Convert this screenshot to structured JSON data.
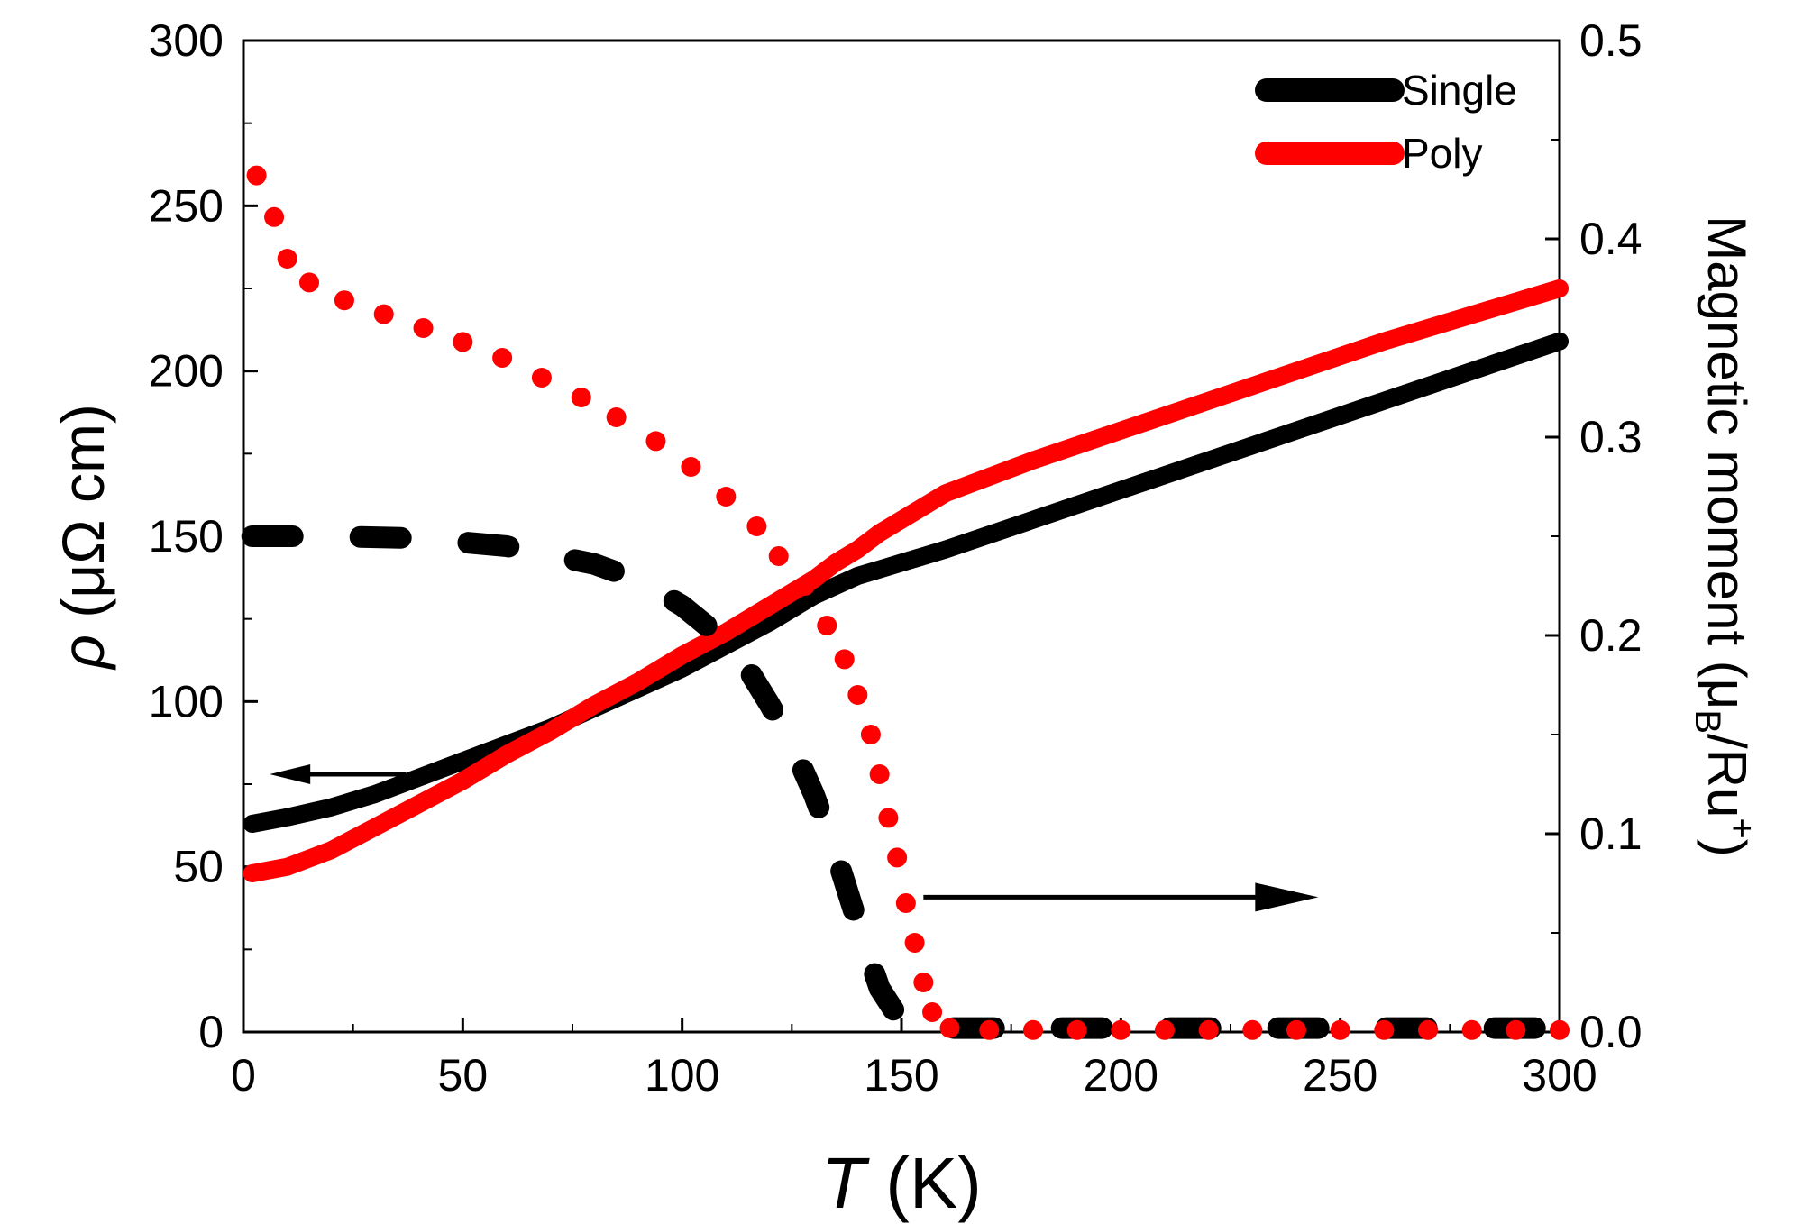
{
  "chart_data": {
    "type": "line",
    "x_axis": {
      "label_symbol": "T",
      "label_unit": " (K)",
      "range": [
        0,
        300
      ],
      "ticks": [
        "0",
        "50",
        "100",
        "150",
        "200",
        "250",
        "300"
      ]
    },
    "y_left_axis": {
      "label_symbol": "ρ",
      "label_unit": " (μΩ cm)",
      "range": [
        0,
        300
      ],
      "ticks": [
        "0",
        "50",
        "100",
        "150",
        "200",
        "250",
        "300"
      ]
    },
    "y_right_axis": {
      "label_main": "Magnetic moment (μ",
      "label_sub": "B",
      "label_mid": "/Ru",
      "label_sup": "+",
      "label_end": ")",
      "range": [
        0,
        0.5
      ],
      "ticks": [
        "0.0",
        "0.1",
        "0.2",
        "0.3",
        "0.4",
        "0.5"
      ]
    },
    "legend": {
      "placement": "top-right",
      "entries": [
        {
          "label": "Single",
          "color": "#000000"
        },
        {
          "label": "Poly",
          "color": "#ff0000"
        }
      ]
    },
    "series": [
      {
        "name": "Single",
        "quantity": "resistivity",
        "axis": "left",
        "style": "solid",
        "color": "#000000",
        "x": [
          2,
          10,
          20,
          30,
          40,
          50,
          60,
          70,
          80,
          90,
          100,
          110,
          120,
          125,
          130,
          135,
          140,
          145,
          150,
          160,
          180,
          200,
          220,
          240,
          260,
          280,
          300
        ],
        "y": [
          63,
          65,
          68,
          72,
          77,
          82,
          87,
          92,
          98,
          104,
          110,
          117,
          124,
          128,
          132,
          135,
          138,
          140,
          142,
          146,
          155,
          164,
          173,
          182,
          191,
          200,
          209
        ]
      },
      {
        "name": "Poly",
        "quantity": "resistivity",
        "axis": "left",
        "style": "solid",
        "color": "#ff0000",
        "x": [
          2,
          10,
          20,
          30,
          40,
          50,
          60,
          70,
          80,
          90,
          100,
          110,
          120,
          125,
          130,
          135,
          140,
          145,
          150,
          160,
          180,
          200,
          220,
          240,
          260,
          280,
          300
        ],
        "y": [
          48,
          50,
          55,
          62,
          69,
          76,
          84,
          91,
          99,
          106,
          114,
          121,
          129,
          133,
          137,
          142,
          146,
          151,
          155,
          163,
          173,
          182,
          191,
          200,
          209,
          217,
          225
        ]
      },
      {
        "name": "Single",
        "quantity": "magnetic moment",
        "axis": "right",
        "style": "dashed",
        "color": "#000000",
        "x": [
          2,
          20,
          40,
          60,
          80,
          90,
          100,
          110,
          115,
          120,
          125,
          130,
          135,
          140,
          145,
          150,
          155,
          160,
          170,
          200,
          250,
          300
        ],
        "y": [
          0.25,
          0.25,
          0.249,
          0.245,
          0.236,
          0.228,
          0.215,
          0.197,
          0.183,
          0.165,
          0.145,
          0.12,
          0.09,
          0.055,
          0.022,
          0.005,
          0.002,
          0.002,
          0.002,
          0.002,
          0.002,
          0.002
        ]
      },
      {
        "name": "Poly",
        "quantity": "magnetic moment",
        "axis": "right",
        "style": "dotted",
        "color": "#ff0000",
        "x": [
          3,
          7,
          10,
          15,
          23,
          32,
          41,
          50,
          59,
          68,
          77,
          85,
          94,
          102,
          110,
          117,
          122,
          128,
          133,
          137,
          140,
          143,
          145,
          147,
          149,
          151,
          153,
          155,
          157,
          161,
          170,
          180,
          190,
          200,
          210,
          220,
          230,
          240,
          250,
          260,
          270,
          280,
          290,
          300
        ],
        "y": [
          0.432,
          0.411,
          0.39,
          0.378,
          0.369,
          0.362,
          0.355,
          0.348,
          0.34,
          0.33,
          0.32,
          0.31,
          0.298,
          0.285,
          0.27,
          0.255,
          0.24,
          0.225,
          0.205,
          0.188,
          0.17,
          0.15,
          0.13,
          0.108,
          0.088,
          0.065,
          0.045,
          0.025,
          0.01,
          0.002,
          0.001,
          0.001,
          0.001,
          0.001,
          0.001,
          0.001,
          0.001,
          0.001,
          0.001,
          0.001,
          0.001,
          0.001,
          0.001,
          0.001
        ]
      }
    ],
    "annotations": [
      {
        "type": "arrow",
        "direction": "left",
        "points_to": "left axis",
        "from": [
          37,
          78
        ],
        "to": [
          6,
          78
        ],
        "axis": "left"
      },
      {
        "type": "arrow",
        "direction": "right",
        "points_to": "right axis",
        "from": [
          155,
          0.068
        ],
        "to": [
          245,
          0.068
        ],
        "axis": "right"
      }
    ]
  }
}
